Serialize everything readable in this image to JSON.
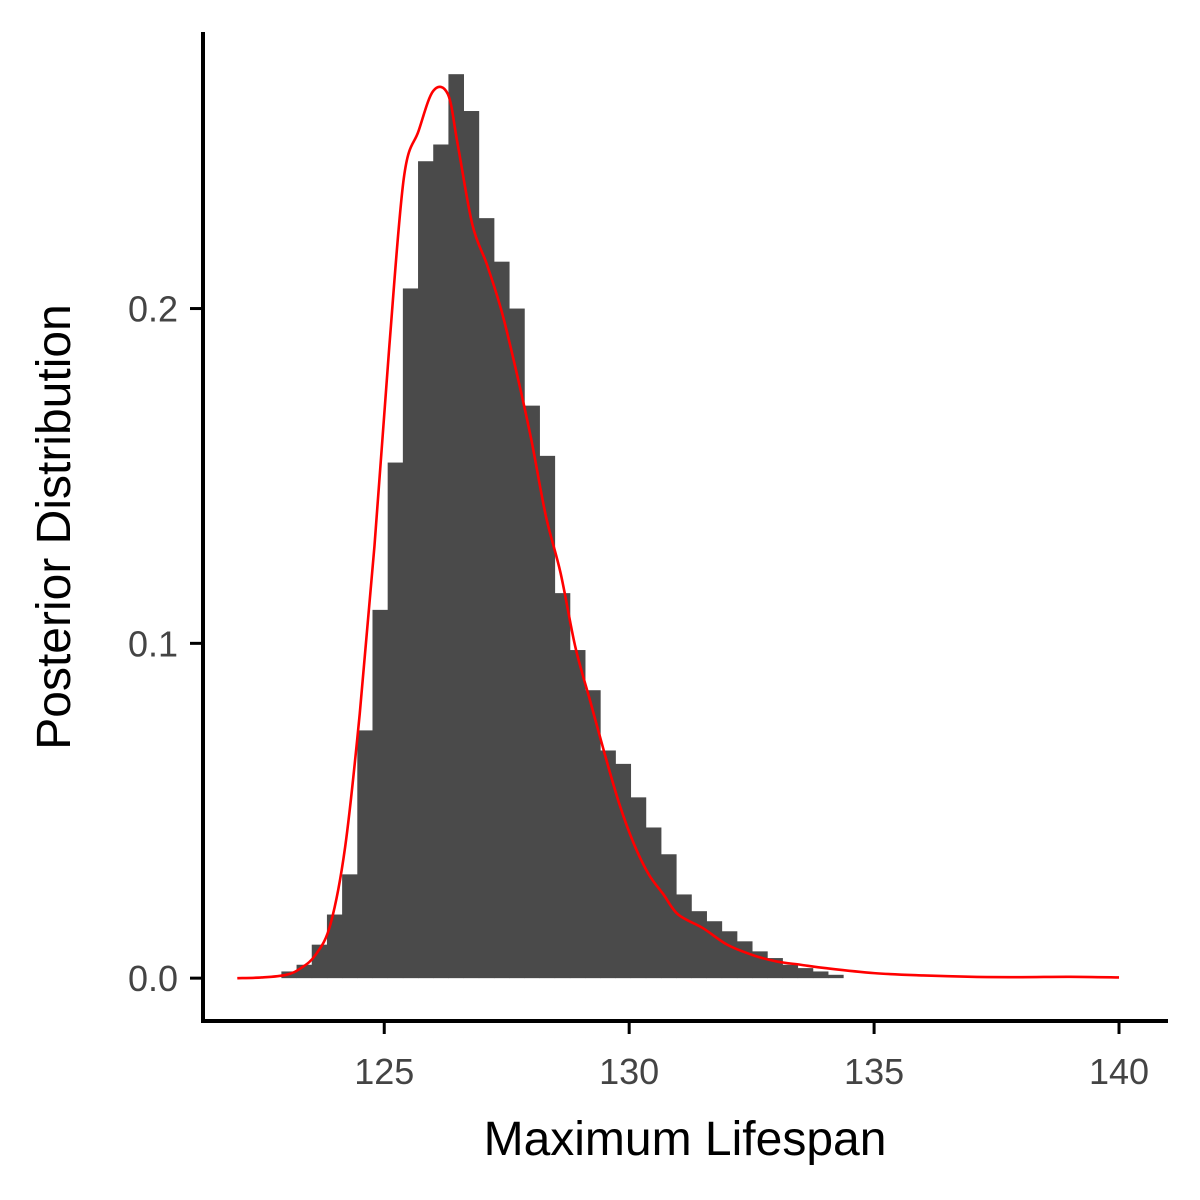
{
  "chart_data": {
    "type": "bar",
    "title": "",
    "xlabel": "Maximum Lifespan",
    "ylabel": "Posterior Distribution",
    "xlim": [
      121.3,
      141.0
    ],
    "ylim": [
      -0.0128,
      0.2826
    ],
    "xticks": [
      125,
      130,
      135,
      140
    ],
    "xtick_labels": [
      "125",
      "130",
      "135",
      "140"
    ],
    "yticks": [
      0.0,
      0.1,
      0.2
    ],
    "ytick_labels": [
      "0.0",
      "0.1",
      "0.2"
    ],
    "grid": false,
    "legend": "none",
    "bar_color": "#4a4a4a",
    "density_color": "#ff0000",
    "histogram": {
      "bin_width": 0.31,
      "bin_starts": [
        122.9,
        123.21,
        123.52,
        123.83,
        124.14,
        124.45,
        124.76,
        125.07,
        125.38,
        125.69,
        126.0,
        126.31,
        126.62,
        126.93,
        127.24,
        127.55,
        127.86,
        128.17,
        128.48,
        128.79,
        129.1,
        129.41,
        129.72,
        130.03,
        130.34,
        130.65,
        130.96,
        131.27,
        131.58,
        131.89,
        132.2,
        132.51,
        132.82,
        133.13,
        133.44,
        133.75,
        134.06
      ],
      "values": [
        0.002,
        0.004,
        0.01,
        0.019,
        0.031,
        0.074,
        0.11,
        0.154,
        0.206,
        0.244,
        0.249,
        0.27,
        0.259,
        0.227,
        0.214,
        0.2,
        0.171,
        0.156,
        0.115,
        0.098,
        0.086,
        0.068,
        0.064,
        0.054,
        0.045,
        0.037,
        0.025,
        0.02,
        0.017,
        0.014,
        0.011,
        0.008,
        0.006,
        0.004,
        0.003,
        0.002,
        0.001
      ]
    },
    "series": [
      {
        "type": "line",
        "x": [
          122.0,
          122.5,
          123.0,
          123.3,
          123.6,
          123.9,
          124.2,
          124.5,
          124.8,
          125.1,
          125.4,
          125.7,
          126.0,
          126.3,
          126.5,
          126.8,
          127.1,
          127.4,
          127.7,
          128.0,
          128.3,
          128.6,
          128.9,
          129.2,
          129.5,
          129.8,
          130.1,
          130.4,
          130.7,
          131.0,
          131.5,
          132.0,
          132.5,
          133.0,
          133.5,
          134.0,
          135.0,
          136.0,
          137.0,
          138.0,
          139.0,
          140.0
        ],
        "y": [
          0.0,
          0.0002,
          0.001,
          0.003,
          0.007,
          0.016,
          0.039,
          0.079,
          0.129,
          0.188,
          0.239,
          0.253,
          0.265,
          0.264,
          0.249,
          0.225,
          0.213,
          0.199,
          0.181,
          0.161,
          0.138,
          0.121,
          0.099,
          0.083,
          0.067,
          0.052,
          0.04,
          0.031,
          0.025,
          0.019,
          0.015,
          0.01,
          0.007,
          0.005,
          0.004,
          0.003,
          0.0015,
          0.0008,
          0.0004,
          0.0003,
          0.0004,
          0.0002
        ]
      }
    ]
  }
}
